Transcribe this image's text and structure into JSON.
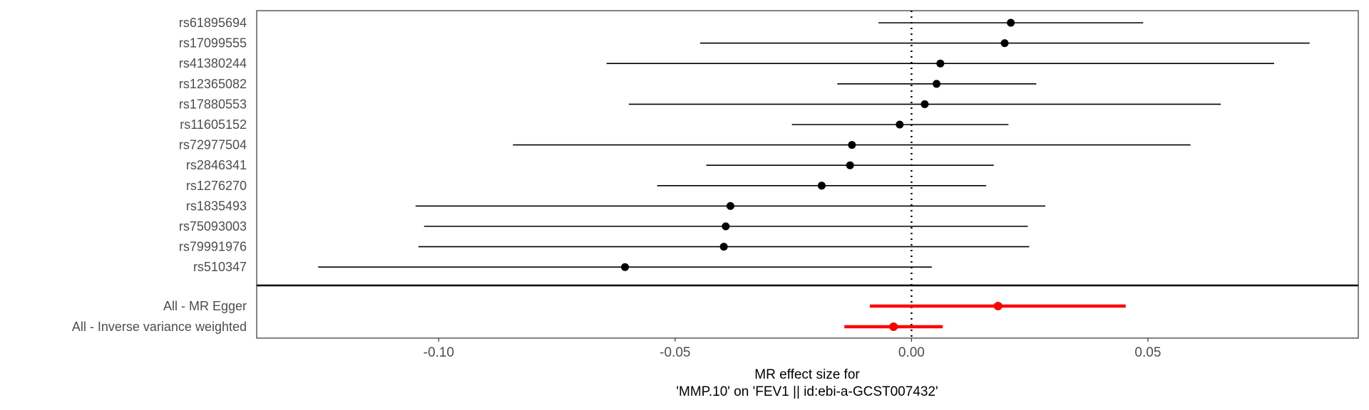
{
  "chart_data": {
    "type": "forest",
    "xlabel": [
      "MR effect size for",
      "'MMP.10' on 'FEV1 || id:ebi-a-GCST007432'"
    ],
    "xlim": [
      -0.1385,
      0.0945
    ],
    "xticks": [
      -0.1,
      -0.05,
      0.0,
      0.05
    ],
    "xtick_labels": [
      "-0.10",
      "-0.05",
      "0.00",
      "0.05"
    ],
    "reference_line": 0,
    "grid": false,
    "colors": {
      "snp": "#000000",
      "summary": "#ff0000",
      "refline": "#000000"
    },
    "snps": [
      {
        "label": "rs61895694",
        "b": 0.021,
        "lo": -0.007,
        "hi": 0.049
      },
      {
        "label": "rs17099555",
        "b": 0.0197,
        "lo": -0.0447,
        "hi": 0.0842
      },
      {
        "label": "rs41380244",
        "b": 0.0061,
        "lo": -0.0645,
        "hi": 0.0767
      },
      {
        "label": "rs12365082",
        "b": 0.0053,
        "lo": -0.0157,
        "hi": 0.0264
      },
      {
        "label": "rs17880553",
        "b": 0.0028,
        "lo": -0.0598,
        "hi": 0.0654
      },
      {
        "label": "rs11605152",
        "b": -0.0025,
        "lo": -0.0253,
        "hi": 0.0205
      },
      {
        "label": "rs72977504",
        "b": -0.0126,
        "lo": -0.0843,
        "hi": 0.059
      },
      {
        "label": "rs2846341",
        "b": -0.013,
        "lo": -0.0434,
        "hi": 0.0174
      },
      {
        "label": "rs1276270",
        "b": -0.019,
        "lo": -0.0538,
        "hi": 0.0158
      },
      {
        "label": "rs1835493",
        "b": -0.0383,
        "lo": -0.1049,
        "hi": 0.0283
      },
      {
        "label": "rs75093003",
        "b": -0.0393,
        "lo": -0.1031,
        "hi": 0.0246
      },
      {
        "label": "rs79991976",
        "b": -0.0397,
        "lo": -0.1043,
        "hi": 0.0249
      },
      {
        "label": "rs510347",
        "b": -0.0606,
        "lo": -0.1255,
        "hi": 0.0043
      }
    ],
    "summary": [
      {
        "label": "All - MR Egger",
        "b": 0.0183,
        "lo": -0.0088,
        "hi": 0.0453
      },
      {
        "label": "All - Inverse variance weighted",
        "b": -0.0038,
        "lo": -0.0142,
        "hi": 0.0066
      }
    ]
  }
}
